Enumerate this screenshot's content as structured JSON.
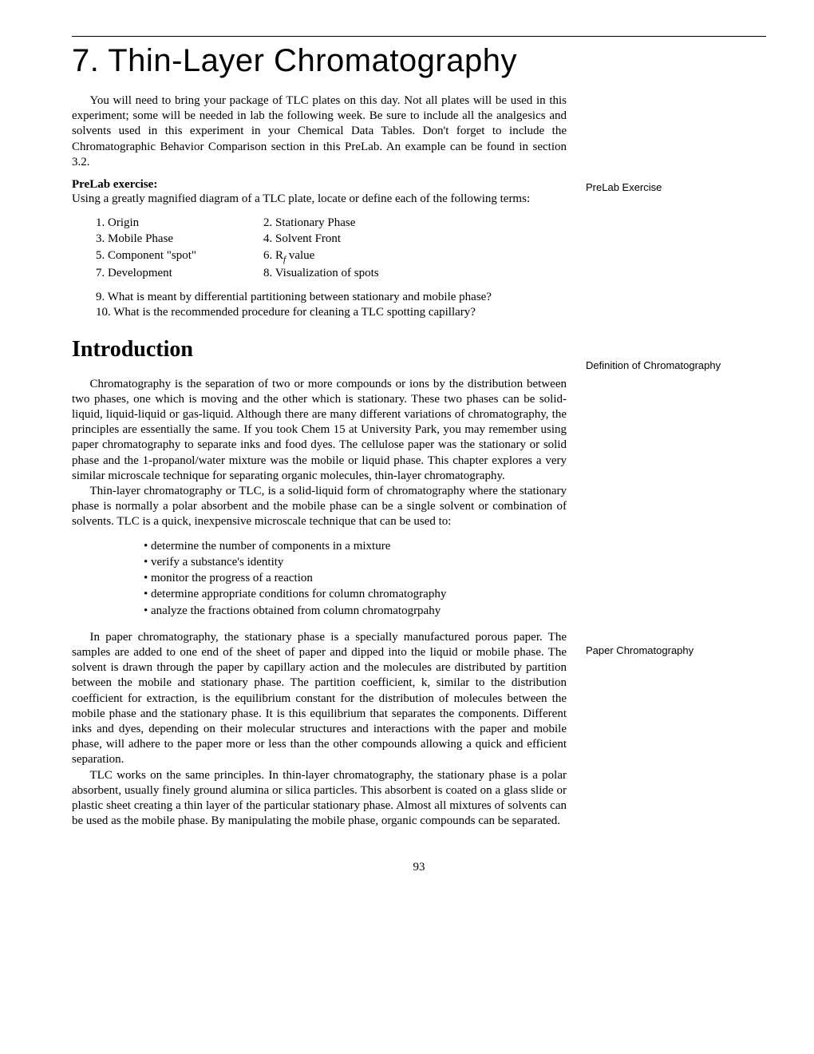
{
  "chapter": {
    "title": "7.  Thin-Layer Chromatography"
  },
  "intro_para": "You will need to bring your package of TLC plates on this day.  Not all plates will be used in this experiment; some will be needed in lab the following week.  Be sure to include all the analgesics and solvents used in this experiment in your Chemical Data Tables.  Don't forget to include the Chromatographic Behavior Comparison section in this PreLab.  An example can be found in section 3.2.",
  "prelab": {
    "heading": "PreLab exercise:",
    "instruction": "Using a greatly magnified diagram of a TLC plate, locate or define each of the following terms:",
    "terms": [
      [
        "1.  Origin",
        "2.  Stationary Phase"
      ],
      [
        "3.  Mobile Phase",
        "4.  Solvent Front"
      ],
      [
        "5.  Component \"spot\"",
        "6.  R"
      ],
      [
        "7.  Development",
        "8.  Visualization of  spots"
      ]
    ],
    "rf_suffix": " value",
    "q9": "9.   What is meant by differential partitioning between stationary and mobile phase?",
    "q10": "10. What is the recommended procedure for cleaning a TLC spotting capillary?"
  },
  "section_heading": "Introduction",
  "para1": "Chromatography is the separation of two or more compounds or ions by the distribution between two phases, one which is moving and the other which is stationary.  These two phases can be solid-liquid, liquid-liquid or gas-liquid.  Although there are many different variations of chromatography, the principles are essentially the same.  If you took Chem 15 at University Park, you may remember using paper chromatography to separate inks and food dyes.  The cellulose paper was the stationary or solid phase and the 1-propanol/water mixture was the mobile or liquid phase.  This chapter explores a very similar microscale technique for separating organic molecules, thin-layer chromatography.",
  "para2": "Thin-layer chromatography or TLC, is a solid-liquid form of chromatography where the stationary phase is normally a polar absorbent and the mobile phase can be a single solvent or combination of solvents.  TLC is a quick, inexpensive microscale technique that can be used to:",
  "bullets": [
    "determine the number of components in a mixture",
    "verify a substance's identity",
    "monitor the progress of a reaction",
    "determine appropriate conditions for column chromatography",
    "analyze the fractions obtained from column chromatogrpahy"
  ],
  "para3": "In paper chromatography, the stationary phase is a specially manufactured porous paper.  The samples are added to one end of the sheet of paper and dipped into the liquid or mobile phase.  The solvent is drawn through the paper by capillary action and the molecules are distributed by partition between the mobile and stationary phase.  The partition coefficient, k, similar to the distribution coefficient for extraction, is the equilibrium constant for the distribution of molecules between the mobile phase and the stationary phase.  It is this equilibrium that separates the components.  Different inks and dyes, depending on their molecular structures and interactions with the paper and mobile phase, will adhere to the paper more or less than the other compounds allowing a quick and efficient separation.",
  "para4": "TLC works on the same principles.  In thin-layer chromatography, the stationary phase is a polar absorbent, usually finely ground alumina or silica particles.  This absorbent is coated on a glass slide or plastic sheet creating a thin layer of the particular stationary phase.  Almost all mixtures of solvents can be used as the mobile phase.  By manipulating the mobile phase, organic compounds can be separated.",
  "sidenotes": {
    "prelab": "PreLab Exercise",
    "definition": "Definition of Chromatography",
    "paper": "Paper Chromatography"
  },
  "page_number": "93"
}
